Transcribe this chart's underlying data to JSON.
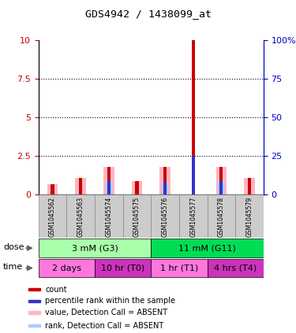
{
  "title": "GDS4942 / 1438099_at",
  "samples": [
    "GSM1045562",
    "GSM1045563",
    "GSM1045574",
    "GSM1045575",
    "GSM1045576",
    "GSM1045577",
    "GSM1045578",
    "GSM1045579"
  ],
  "red_bars": [
    0.7,
    1.1,
    1.8,
    0.9,
    1.8,
    10.0,
    1.8,
    1.1
  ],
  "blue_bars": [
    0.0,
    0.0,
    0.9,
    0.0,
    0.8,
    2.5,
    0.9,
    0.0
  ],
  "pink_bars": [
    0.7,
    1.1,
    1.8,
    0.9,
    1.8,
    0.0,
    1.8,
    1.1
  ],
  "lightblue_bars": [
    0.0,
    0.0,
    0.9,
    0.0,
    0.8,
    0.0,
    0.9,
    0.0
  ],
  "ylim": [
    0,
    10
  ],
  "yticks": [
    0,
    2.5,
    5,
    7.5,
    10
  ],
  "ytick_labels_left": [
    "0",
    "2.5",
    "5",
    "7.5",
    "10"
  ],
  "ytick_labels_right": [
    "0",
    "25",
    "50",
    "75",
    "100%"
  ],
  "dose_groups": [
    {
      "label": "3 mM (G3)",
      "start": 0,
      "end": 4,
      "color": "#AAFFAA"
    },
    {
      "label": "11 mM (G11)",
      "start": 4,
      "end": 8,
      "color": "#00DD55"
    }
  ],
  "time_groups": [
    {
      "label": "2 days",
      "start": 0,
      "end": 2,
      "color": "#FF77DD"
    },
    {
      "label": "10 hr (T0)",
      "start": 2,
      "end": 4,
      "color": "#CC33BB"
    },
    {
      "label": "1 hr (T1)",
      "start": 4,
      "end": 6,
      "color": "#FF77DD"
    },
    {
      "label": "4 hrs (T4)",
      "start": 6,
      "end": 8,
      "color": "#CC33BB"
    }
  ],
  "legend_items": [
    {
      "color": "#CC0000",
      "label": "count"
    },
    {
      "color": "#3333CC",
      "label": "percentile rank within the sample"
    },
    {
      "color": "#FFB6C1",
      "label": "value, Detection Call = ABSENT"
    },
    {
      "color": "#AACCFF",
      "label": "rank, Detection Call = ABSENT"
    }
  ],
  "left_axis_color": "#CC0000",
  "right_axis_color": "#0000CC"
}
